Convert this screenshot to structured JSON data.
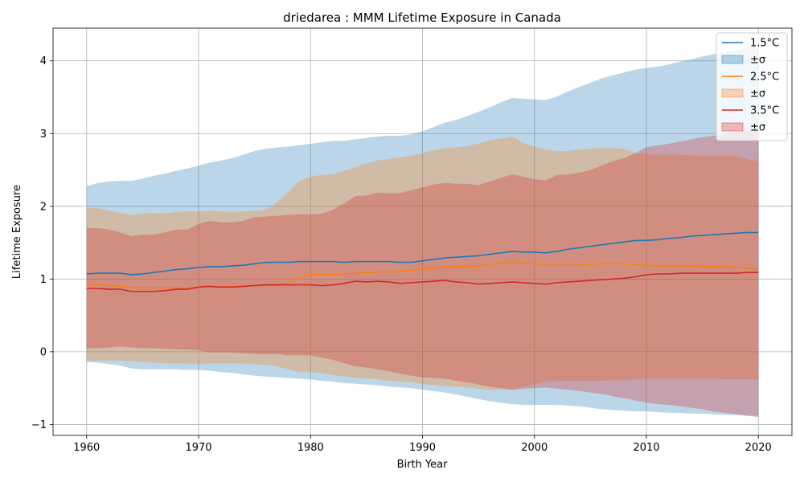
{
  "chart_data": {
    "type": "area",
    "title": "driedarea : MMM Lifetime Exposure in Canada",
    "xlabel": "Birth Year",
    "ylabel": "Lifetime Exposure",
    "xlim": [
      1957,
      2023
    ],
    "ylim": [
      -1.15,
      4.45
    ],
    "xticks": [
      1960,
      1970,
      1980,
      1990,
      2000,
      2010,
      2020
    ],
    "yticks": [
      -1,
      0,
      1,
      2,
      3,
      4
    ],
    "ytick_labels": [
      "−1",
      "0",
      "1",
      "2",
      "3",
      "4"
    ],
    "grid": true,
    "legend_position": "upper-right",
    "x": [
      1960,
      1961,
      1962,
      1963,
      1964,
      1965,
      1966,
      1967,
      1968,
      1969,
      1970,
      1971,
      1972,
      1973,
      1974,
      1975,
      1976,
      1977,
      1978,
      1979,
      1980,
      1981,
      1982,
      1983,
      1984,
      1985,
      1986,
      1987,
      1988,
      1989,
      1990,
      1991,
      1992,
      1993,
      1994,
      1995,
      1996,
      1997,
      1998,
      1999,
      2000,
      2001,
      2002,
      2003,
      2004,
      2005,
      2006,
      2007,
      2008,
      2009,
      2010,
      2011,
      2012,
      2013,
      2014,
      2015,
      2016,
      2017,
      2018,
      2019,
      2020
    ],
    "series": [
      {
        "name": "1.5°C",
        "band_name": "±σ",
        "color": "#1f77b4",
        "mean": [
          1.07,
          1.08,
          1.08,
          1.08,
          1.06,
          1.07,
          1.09,
          1.11,
          1.13,
          1.14,
          1.16,
          1.17,
          1.17,
          1.18,
          1.19,
          1.21,
          1.23,
          1.23,
          1.23,
          1.24,
          1.24,
          1.24,
          1.24,
          1.23,
          1.24,
          1.24,
          1.24,
          1.24,
          1.23,
          1.23,
          1.25,
          1.27,
          1.29,
          1.3,
          1.31,
          1.32,
          1.34,
          1.36,
          1.38,
          1.37,
          1.37,
          1.36,
          1.38,
          1.41,
          1.43,
          1.45,
          1.47,
          1.49,
          1.51,
          1.53,
          1.53,
          1.54,
          1.56,
          1.57,
          1.59,
          1.6,
          1.61,
          1.62,
          1.63,
          1.64,
          1.64
        ],
        "upper": [
          2.28,
          2.32,
          2.34,
          2.35,
          2.35,
          2.38,
          2.42,
          2.45,
          2.49,
          2.52,
          2.56,
          2.6,
          2.63,
          2.66,
          2.71,
          2.76,
          2.79,
          2.81,
          2.82,
          2.84,
          2.86,
          2.88,
          2.9,
          2.9,
          2.92,
          2.94,
          2.96,
          2.97,
          2.97,
          2.99,
          3.03,
          3.09,
          3.15,
          3.19,
          3.24,
          3.3,
          3.36,
          3.43,
          3.49,
          3.48,
          3.47,
          3.46,
          3.51,
          3.58,
          3.64,
          3.7,
          3.76,
          3.8,
          3.84,
          3.88,
          3.9,
          3.92,
          3.95,
          3.99,
          4.02,
          4.06,
          4.09,
          4.12,
          4.15,
          4.18,
          4.2
        ],
        "lower": [
          -0.14,
          -0.15,
          -0.17,
          -0.19,
          -0.23,
          -0.24,
          -0.24,
          -0.24,
          -0.24,
          -0.25,
          -0.25,
          -0.26,
          -0.28,
          -0.29,
          -0.31,
          -0.33,
          -0.34,
          -0.35,
          -0.36,
          -0.37,
          -0.38,
          -0.4,
          -0.41,
          -0.43,
          -0.44,
          -0.45,
          -0.46,
          -0.48,
          -0.49,
          -0.5,
          -0.52,
          -0.54,
          -0.56,
          -0.59,
          -0.62,
          -0.65,
          -0.68,
          -0.7,
          -0.72,
          -0.73,
          -0.73,
          -0.73,
          -0.73,
          -0.74,
          -0.75,
          -0.77,
          -0.79,
          -0.8,
          -0.81,
          -0.82,
          -0.82,
          -0.83,
          -0.84,
          -0.84,
          -0.85,
          -0.85,
          -0.86,
          -0.87,
          -0.87,
          -0.88,
          -0.88
        ]
      },
      {
        "name": "2.5°C",
        "band_name": "±σ",
        "color": "#ff7f0e",
        "mean": [
          0.93,
          0.92,
          0.91,
          0.9,
          0.88,
          0.88,
          0.88,
          0.88,
          0.88,
          0.88,
          0.89,
          0.89,
          0.89,
          0.9,
          0.9,
          0.91,
          0.91,
          0.92,
          0.94,
          1.03,
          1.06,
          1.07,
          1.06,
          1.07,
          1.08,
          1.09,
          1.1,
          1.1,
          1.11,
          1.12,
          1.14,
          1.15,
          1.17,
          1.17,
          1.17,
          1.18,
          1.2,
          1.22,
          1.24,
          1.22,
          1.21,
          1.19,
          1.19,
          1.19,
          1.19,
          1.2,
          1.21,
          1.21,
          1.21,
          1.2,
          1.19,
          1.18,
          1.18,
          1.18,
          1.18,
          1.17,
          1.17,
          1.17,
          1.16,
          1.15,
          1.13
        ],
        "upper": [
          1.98,
          1.97,
          1.94,
          1.91,
          1.88,
          1.9,
          1.91,
          1.9,
          1.92,
          1.93,
          1.93,
          1.94,
          1.93,
          1.92,
          1.93,
          1.94,
          1.95,
          2.05,
          2.19,
          2.35,
          2.41,
          2.43,
          2.44,
          2.49,
          2.54,
          2.59,
          2.63,
          2.65,
          2.67,
          2.7,
          2.73,
          2.77,
          2.8,
          2.81,
          2.83,
          2.86,
          2.91,
          2.93,
          2.96,
          2.87,
          2.82,
          2.78,
          2.76,
          2.76,
          2.78,
          2.79,
          2.8,
          2.8,
          2.79,
          2.73,
          2.72,
          2.71,
          2.71,
          2.71,
          2.7,
          2.69,
          2.69,
          2.7,
          2.69,
          2.65,
          2.62
        ],
        "lower": [
          -0.12,
          -0.12,
          -0.12,
          -0.12,
          -0.13,
          -0.14,
          -0.15,
          -0.16,
          -0.16,
          -0.16,
          -0.17,
          -0.16,
          -0.16,
          -0.16,
          -0.16,
          -0.17,
          -0.18,
          -0.2,
          -0.24,
          -0.28,
          -0.28,
          -0.29,
          -0.32,
          -0.34,
          -0.36,
          -0.37,
          -0.38,
          -0.4,
          -0.41,
          -0.42,
          -0.44,
          -0.46,
          -0.47,
          -0.48,
          -0.49,
          -0.51,
          -0.52,
          -0.52,
          -0.52,
          -0.48,
          -0.45,
          -0.41,
          -0.4,
          -0.4,
          -0.4,
          -0.4,
          -0.4,
          -0.39,
          -0.39,
          -0.38,
          -0.37,
          -0.37,
          -0.37,
          -0.37,
          -0.37,
          -0.37,
          -0.37,
          -0.38,
          -0.38,
          -0.38,
          -0.38
        ]
      },
      {
        "name": "3.5°C",
        "band_name": "±σ",
        "color": "#d62728",
        "mean": [
          0.87,
          0.87,
          0.86,
          0.86,
          0.83,
          0.83,
          0.83,
          0.84,
          0.86,
          0.86,
          0.89,
          0.9,
          0.89,
          0.89,
          0.9,
          0.91,
          0.92,
          0.92,
          0.92,
          0.92,
          0.92,
          0.91,
          0.92,
          0.94,
          0.97,
          0.96,
          0.97,
          0.96,
          0.94,
          0.95,
          0.96,
          0.97,
          0.98,
          0.96,
          0.95,
          0.93,
          0.94,
          0.95,
          0.96,
          0.95,
          0.94,
          0.93,
          0.95,
          0.96,
          0.97,
          0.98,
          0.99,
          1.0,
          1.01,
          1.03,
          1.06,
          1.07,
          1.07,
          1.08,
          1.08,
          1.08,
          1.08,
          1.08,
          1.08,
          1.09,
          1.09
        ],
        "upper": [
          1.7,
          1.7,
          1.68,
          1.64,
          1.59,
          1.61,
          1.61,
          1.64,
          1.68,
          1.68,
          1.76,
          1.8,
          1.78,
          1.78,
          1.8,
          1.85,
          1.86,
          1.87,
          1.88,
          1.89,
          1.89,
          1.9,
          1.95,
          2.04,
          2.14,
          2.15,
          2.19,
          2.18,
          2.18,
          2.22,
          2.26,
          2.3,
          2.32,
          2.31,
          2.31,
          2.29,
          2.34,
          2.39,
          2.44,
          2.41,
          2.37,
          2.36,
          2.43,
          2.44,
          2.46,
          2.5,
          2.56,
          2.62,
          2.66,
          2.73,
          2.81,
          2.84,
          2.86,
          2.89,
          2.92,
          2.95,
          2.97,
          2.99,
          3.02,
          3.05,
          3.07
        ],
        "lower": [
          0.05,
          0.05,
          0.06,
          0.07,
          0.06,
          0.05,
          0.05,
          0.04,
          0.03,
          0.03,
          0.02,
          -0.01,
          -0.01,
          -0.01,
          -0.02,
          -0.03,
          -0.03,
          -0.03,
          -0.05,
          -0.05,
          -0.05,
          -0.08,
          -0.11,
          -0.16,
          -0.2,
          -0.22,
          -0.24,
          -0.27,
          -0.3,
          -0.33,
          -0.35,
          -0.36,
          -0.37,
          -0.4,
          -0.42,
          -0.45,
          -0.48,
          -0.5,
          -0.52,
          -0.51,
          -0.5,
          -0.49,
          -0.51,
          -0.52,
          -0.54,
          -0.56,
          -0.58,
          -0.61,
          -0.64,
          -0.67,
          -0.7,
          -0.72,
          -0.73,
          -0.75,
          -0.77,
          -0.79,
          -0.82,
          -0.84,
          -0.86,
          -0.88,
          -0.9
        ]
      }
    ]
  }
}
